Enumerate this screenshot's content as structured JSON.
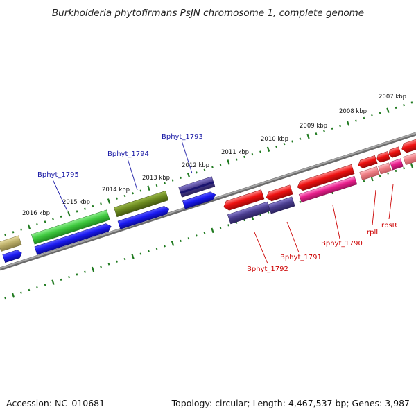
{
  "title": "Burkholderia phytofirmans PsJN chromosome 1, complete genome",
  "kbp_labels": [
    "2016 kbp",
    "2015 kbp",
    "2014 kbp",
    "2013 kbp",
    "2012 kbp",
    "2011 kbp",
    "2010 kbp",
    "2009 kbp",
    "2008 kbp",
    "2007 kbp"
  ],
  "gene_labels_blue": [
    "Bphyt_1795",
    "Bphyt_1794",
    "Bphyt_1793"
  ],
  "gene_labels_red": [
    "Bphyt_1792",
    "Bphyt_1791",
    "Bphyt_1790",
    "rplI",
    "rpsR"
  ],
  "footer": {
    "accession": "Accession: NC_010681",
    "stats": "Topology: circular; Length: 4,467,537 bp; Genes: 3,987"
  },
  "colors": {
    "background": "#ffffff",
    "backbone": "#8a8a8a",
    "tick": "#1f7a1f",
    "blue_gene": "#1414e6",
    "green_gene": "#3fc93f",
    "olive_gene": "#6b8a1f",
    "purple_gene": "#4a3d8f",
    "red_gene": "#ee1111",
    "magenta_gene": "#e81e8c",
    "pink_gene": "#ef7f86",
    "khaki_gene": "#bdb06a",
    "label_blue": "#1a1aa6",
    "label_red": "#cc0000"
  }
}
